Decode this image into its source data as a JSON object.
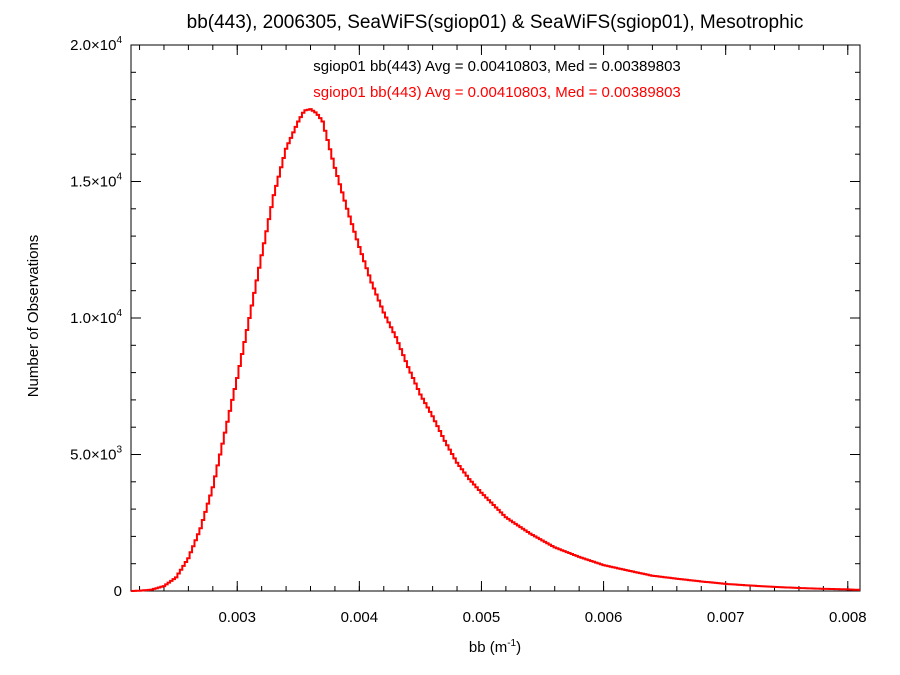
{
  "chart_data": {
    "type": "line",
    "title": "bb(443), 2006305, SeaWiFS(sgiop01) & SeaWiFS(sgiop01), Mesotrophic",
    "xlabel": "bb (m",
    "xlabel_sup": "-1",
    "xlabel_close": ")",
    "ylabel": "Number of Observations",
    "xlim": [
      0.00213,
      0.0081
    ],
    "ylim": [
      0,
      20000
    ],
    "x_ticks": [
      {
        "value": 0.003,
        "label": "0.003"
      },
      {
        "value": 0.004,
        "label": "0.004"
      },
      {
        "value": 0.005,
        "label": "0.005"
      },
      {
        "value": 0.006,
        "label": "0.006"
      },
      {
        "value": 0.007,
        "label": "0.007"
      },
      {
        "value": 0.008,
        "label": "0.008"
      }
    ],
    "y_ticks": [
      {
        "value": 0,
        "mant": "0",
        "exp": ""
      },
      {
        "value": 5000,
        "mant": "5.0×10",
        "exp": "3"
      },
      {
        "value": 10000,
        "mant": "1.0×10",
        "exp": "4"
      },
      {
        "value": 15000,
        "mant": "1.5×10",
        "exp": "4"
      },
      {
        "value": 20000,
        "mant": "2.0×10",
        "exp": "4"
      }
    ],
    "legend": [
      {
        "text": "sgiop01 bb(443) Avg = 0.00410803, Med = 0.00389803",
        "color": "#000000"
      },
      {
        "text": "sgiop01 bb(443) Avg = 0.00410803, Med = 0.00389803",
        "color": "#ff0000"
      }
    ],
    "series": [
      {
        "color": "#ff0000",
        "step": true,
        "x": [
          0.00213,
          0.0022,
          0.0023,
          0.0024,
          0.0025,
          0.0026,
          0.0027,
          0.0028,
          0.0029,
          0.003,
          0.0031,
          0.0032,
          0.0033,
          0.0034,
          0.0035,
          0.00355,
          0.0036,
          0.00365,
          0.0037,
          0.0038,
          0.0039,
          0.004,
          0.0041,
          0.0042,
          0.0043,
          0.0044,
          0.0045,
          0.0046,
          0.0047,
          0.0048,
          0.0049,
          0.005,
          0.0052,
          0.0054,
          0.0056,
          0.0058,
          0.006,
          0.0062,
          0.0064,
          0.0066,
          0.0068,
          0.007,
          0.0072,
          0.0074,
          0.0076,
          0.0078,
          0.008,
          0.0081
        ],
        "y": [
          0,
          10,
          50,
          180,
          500,
          1200,
          2300,
          3800,
          5800,
          7800,
          10000,
          12300,
          14500,
          16200,
          17200,
          17600,
          17650,
          17500,
          17200,
          15500,
          14000,
          12600,
          11300,
          10200,
          9300,
          8200,
          7200,
          6400,
          5500,
          4700,
          4100,
          3600,
          2700,
          2100,
          1600,
          1250,
          950,
          750,
          560,
          450,
          350,
          260,
          200,
          150,
          110,
          80,
          60,
          40
        ]
      }
    ]
  }
}
